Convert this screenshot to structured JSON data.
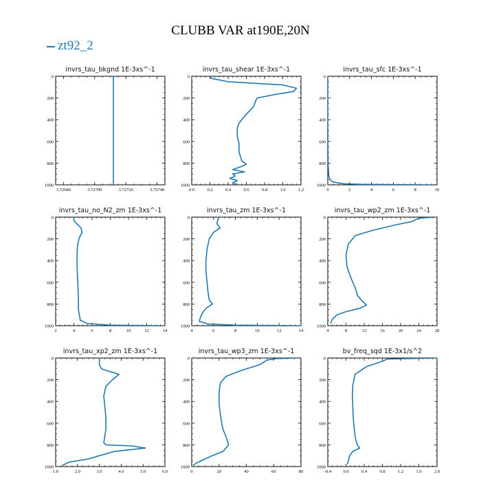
{
  "title": "CLUBB VAR at190E,20N",
  "legend": {
    "label": "zt92_2",
    "color": "#1f77b4"
  },
  "chart_data": [
    {
      "type": "line",
      "title": "invrs_tau_bkgnd   1E-3xs^-1",
      "xlim": [
        3.72675,
        3.72745
      ],
      "xticks": [
        3.7268,
        3.727,
        3.7272,
        3.7274
      ],
      "xticklabels": [
        "3.72680",
        "3.72700",
        "3.72720",
        "3.72740"
      ],
      "ylim": [
        0,
        1000
      ],
      "yticks": [
        0,
        200,
        400,
        600,
        800,
        1000
      ],
      "series": [
        {
          "x": [
            3.72712,
            3.72712
          ],
          "y": [
            0,
            1000
          ]
        }
      ]
    },
    {
      "type": "line",
      "title": "invrs_tau_shear   1E-3xs^-1",
      "xlim": [
        0,
        1.2
      ],
      "xticks": [
        0,
        0.2,
        0.4,
        0.6,
        0.8,
        1.0,
        1.2
      ],
      "xticklabels": [
        "0.0",
        "0.2",
        "0.4",
        "0.6",
        "0.8",
        "1.0",
        "1.2"
      ],
      "ylim": [
        0,
        1000
      ],
      "yticks": [
        0,
        200,
        400,
        600,
        800,
        1000
      ],
      "series": [
        {
          "x": [
            0.2,
            0.22,
            0.4,
            0.8,
            1.0,
            1.15,
            1.12,
            0.9,
            0.72,
            0.7,
            0.68,
            0.6,
            0.52,
            0.5,
            0.5,
            0.52,
            0.52,
            0.55,
            0.6,
            0.55,
            0.45,
            0.58,
            0.45,
            0.48,
            0.42,
            0.5,
            0.45,
            0.5
          ],
          "y": [
            0,
            20,
            50,
            70,
            80,
            110,
            140,
            170,
            200,
            230,
            280,
            350,
            430,
            480,
            550,
            620,
            700,
            780,
            810,
            830,
            860,
            880,
            900,
            920,
            940,
            960,
            980,
            1000
          ]
        }
      ]
    },
    {
      "type": "line",
      "title": "invrs_tau_sfc   1E-3xs^-1",
      "xlim": [
        0,
        10
      ],
      "xticks": [
        0,
        2,
        4,
        6,
        8,
        10
      ],
      "xticklabels": [
        "0",
        "2",
        "4",
        "6",
        "8",
        "10"
      ],
      "ylim": [
        0,
        1000
      ],
      "yticks": [
        0,
        200,
        400,
        600,
        800,
        1000
      ],
      "series": [
        {
          "x": [
            0.0,
            0.0,
            0.02,
            0.05,
            0.1,
            0.2,
            0.4,
            0.8,
            1.5,
            3.0,
            6.0,
            9.8
          ],
          "y": [
            0,
            400,
            700,
            850,
            920,
            950,
            970,
            980,
            990,
            995,
            998,
            1000
          ]
        }
      ]
    },
    {
      "type": "line",
      "title": "invrs_tau_no_N2_zm   1E-3xs^-1",
      "xlim": [
        2,
        14
      ],
      "xticks": [
        2,
        4,
        6,
        8,
        10,
        12,
        14
      ],
      "xticklabels": [
        "2",
        "4",
        "6",
        "8",
        "10",
        "12",
        "14"
      ],
      "ylim": [
        0,
        1000
      ],
      "yticks": [
        0,
        200,
        400,
        600,
        800,
        1000
      ],
      "series": [
        {
          "x": [
            4.0,
            4.0,
            4.3,
            4.8,
            4.9,
            4.6,
            4.4,
            4.35,
            4.35,
            4.4,
            4.45,
            4.5,
            4.5,
            4.7,
            5.5,
            8.0,
            13.5
          ],
          "y": [
            0,
            30,
            60,
            100,
            140,
            190,
            260,
            350,
            450,
            550,
            650,
            750,
            850,
            950,
            980,
            995,
            1000
          ]
        }
      ]
    },
    {
      "type": "line",
      "title": "invrs_tau_zm   1E-3xs^-1",
      "xlim": [
        4,
        14
      ],
      "xticks": [
        4,
        6,
        8,
        10,
        12,
        14
      ],
      "xticklabels": [
        "4",
        "6",
        "8",
        "10",
        "12",
        "14"
      ],
      "ylim": [
        0,
        1000
      ],
      "yticks": [
        0,
        200,
        400,
        600,
        800,
        1000
      ],
      "series": [
        {
          "x": [
            6.5,
            6.4,
            6.3,
            6.6,
            6.0,
            5.6,
            5.4,
            5.3,
            5.3,
            5.4,
            5.5,
            5.6,
            5.9,
            5.3,
            5.0,
            4.8,
            4.7,
            5.5,
            8.0,
            14.0
          ],
          "y": [
            0,
            20,
            60,
            100,
            140,
            200,
            300,
            400,
            500,
            600,
            700,
            760,
            800,
            840,
            880,
            920,
            960,
            985,
            995,
            1000
          ]
        }
      ]
    },
    {
      "type": "line",
      "title": "invrs_tau_wp2_zm   1E-3xs^-1",
      "xlim": [
        4,
        28
      ],
      "xticks": [
        4,
        8,
        12,
        16,
        20,
        24,
        28
      ],
      "xticklabels": [
        "4",
        "8",
        "12",
        "16",
        "20",
        "24",
        "28"
      ],
      "ylim": [
        0,
        1000
      ],
      "yticks": [
        0,
        200,
        400,
        600,
        800,
        1000
      ],
      "series": [
        {
          "x": [
            27.5,
            24.0,
            22.5,
            19.0,
            14.0,
            10.0,
            8.5,
            8.0,
            8.2,
            9.0,
            10.0,
            10.5,
            11.5,
            12.5,
            11.0,
            8.0,
            6.0,
            5.0,
            4.6
          ],
          "y": [
            0,
            10,
            40,
            70,
            120,
            170,
            250,
            350,
            450,
            550,
            650,
            720,
            770,
            810,
            840,
            870,
            900,
            940,
            980
          ]
        }
      ]
    },
    {
      "type": "line",
      "title": "invrs_tau_xp2_zm   1E-3xs^-1",
      "xlim": [
        1,
        6
      ],
      "xticks": [
        1,
        2,
        3,
        4,
        5,
        6
      ],
      "xticklabels": [
        "1.0",
        "2.0",
        "3.0",
        "4.0",
        "5.0",
        "6.0"
      ],
      "ylim": [
        0,
        1000
      ],
      "yticks": [
        0,
        200,
        400,
        600,
        800,
        1000
      ],
      "series": [
        {
          "x": [
            3.0,
            3.0,
            3.1,
            3.4,
            3.9,
            3.6,
            3.3,
            3.2,
            3.25,
            3.3,
            3.3,
            3.25,
            3.2,
            3.3,
            4.5,
            5.1,
            3.7,
            3.0,
            2.5,
            1.6,
            1.3
          ],
          "y": [
            0,
            60,
            100,
            120,
            150,
            200,
            260,
            350,
            450,
            550,
            650,
            720,
            780,
            800,
            810,
            830,
            860,
            900,
            930,
            960,
            990
          ]
        }
      ]
    },
    {
      "type": "line",
      "title": "invrs_tau_wp3_zm   1E-3xs^-1",
      "xlim": [
        0,
        80
      ],
      "xticks": [
        0,
        20,
        40,
        60,
        80
      ],
      "xticklabels": [
        "0",
        "20",
        "40",
        "60",
        "80"
      ],
      "ylim": [
        0,
        1000
      ],
      "yticks": [
        0,
        200,
        400,
        600,
        800,
        1000
      ],
      "series": [
        {
          "x": [
            78,
            62,
            55,
            50,
            35,
            25,
            21,
            20,
            20,
            21,
            22,
            23,
            25,
            27,
            23,
            15,
            8,
            3,
            1
          ],
          "y": [
            0,
            5,
            20,
            60,
            120,
            170,
            230,
            320,
            420,
            520,
            600,
            660,
            720,
            800,
            860,
            900,
            940,
            970,
            990
          ]
        }
      ]
    },
    {
      "type": "line",
      "title": "bv_freq_sqd   1E-3x1/s^2",
      "xlim": [
        -0.4,
        2.0
      ],
      "xticks": [
        -0.4,
        0.0,
        0.4,
        0.8,
        1.2,
        1.6,
        2.0
      ],
      "xticklabels": [
        "-0.4",
        "0.0",
        "0.4",
        "0.8",
        "1.2",
        "1.6",
        "2.0"
      ],
      "ylim": [
        0,
        1000
      ],
      "yticks": [
        0,
        200,
        400,
        600,
        800,
        1000
      ],
      "series": [
        {
          "x": [
            2.0,
            1.6,
            0.9,
            0.8,
            0.45,
            0.2,
            0.15,
            0.14,
            0.15,
            0.16,
            0.18,
            0.2,
            0.22,
            0.25,
            0.3,
            0.15,
            0.08,
            0.05,
            0.03
          ],
          "y": [
            0,
            3,
            10,
            30,
            80,
            150,
            250,
            350,
            450,
            550,
            650,
            720,
            760,
            800,
            830,
            860,
            900,
            950,
            980
          ]
        }
      ]
    }
  ]
}
